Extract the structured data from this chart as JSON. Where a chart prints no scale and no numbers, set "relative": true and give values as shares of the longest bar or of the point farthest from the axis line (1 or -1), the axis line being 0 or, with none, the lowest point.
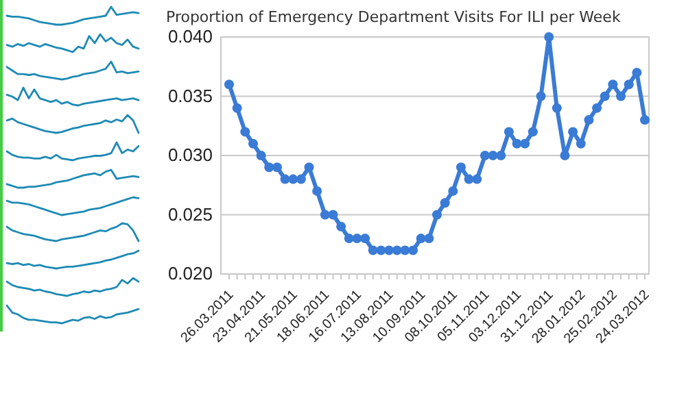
{
  "chart_data": [
    {
      "type": "line",
      "title": "Proportion of Emergency Department Visits For ILI per Week",
      "categories": [
        "26.03.2011",
        null,
        null,
        null,
        "23.04.2011",
        null,
        null,
        null,
        "21.05.2011",
        null,
        null,
        null,
        "18.06.2011",
        null,
        null,
        null,
        "16.07.2011",
        null,
        null,
        null,
        "13.08.2011",
        null,
        null,
        null,
        "10.09.2011",
        null,
        null,
        null,
        "08.10.2011",
        null,
        null,
        null,
        "05.11.2011",
        null,
        null,
        null,
        "03.12.2011",
        null,
        null,
        null,
        "31.12.2011",
        null,
        null,
        null,
        "28.01.2012",
        null,
        null,
        null,
        "25.02.2012",
        null,
        null,
        null,
        "24.03.2012"
      ],
      "series": [
        {
          "color": "#3a7bd5",
          "values": [
            0.036,
            0.034,
            0.032,
            0.031,
            0.03,
            0.029,
            0.029,
            0.028,
            0.028,
            0.028,
            0.029,
            0.027,
            0.025,
            0.025,
            0.024,
            0.023,
            0.023,
            0.023,
            0.022,
            0.022,
            0.022,
            0.022,
            0.022,
            0.022,
            0.023,
            0.023,
            0.025,
            0.026,
            0.027,
            0.029,
            0.028,
            0.028,
            0.03,
            0.03,
            0.03,
            0.032,
            0.031,
            0.031,
            0.032,
            0.035,
            0.04,
            0.034,
            0.03,
            0.032,
            0.031,
            0.033,
            0.034,
            0.035,
            0.036,
            0.035,
            0.036,
            0.037,
            0.033
          ]
        }
      ],
      "ylim": [
        0.02,
        0.04
      ],
      "yticks": [
        {
          "value": 0.02,
          "label": "0.020"
        },
        {
          "value": 0.025,
          "label": "0.025"
        },
        {
          "value": 0.03,
          "label": "0.030"
        },
        {
          "value": 0.035,
          "label": "0.035"
        },
        {
          "value": 0.04,
          "label": "0.040"
        }
      ],
      "grid": "y",
      "marker": "circle"
    },
    {
      "type": "line",
      "relative": true,
      "categories": [
        null,
        null,
        null,
        null,
        null,
        null,
        null,
        null,
        null,
        null,
        null,
        null,
        null,
        null,
        null,
        null,
        null,
        null,
        null,
        null,
        null,
        null,
        null,
        null,
        null
      ],
      "series": [
        {
          "color": "#1e8ab4",
          "values": [
            0.5,
            0.45,
            0.45,
            0.4,
            0.35,
            0.25,
            0.15,
            0.1,
            0.05,
            0,
            0,
            0.05,
            0.1,
            0.2,
            0.3,
            0.35,
            0.4,
            0.45,
            0.5,
            1,
            0.55,
            0.6,
            0.65,
            0.7,
            0.65
          ]
        }
      ]
    },
    {
      "type": "line",
      "relative": true,
      "categories": [
        null,
        null,
        null,
        null,
        null,
        null,
        null,
        null,
        null,
        null,
        null,
        null,
        null,
        null,
        null,
        null,
        null,
        null,
        null,
        null,
        null,
        null,
        null,
        null,
        null
      ],
      "series": [
        {
          "color": "#1e8ab4",
          "values": [
            0.4,
            0.3,
            0.45,
            0.35,
            0.5,
            0.4,
            0.3,
            0.45,
            0.35,
            0.25,
            0.2,
            0.1,
            0,
            0.3,
            0.2,
            0.9,
            0.5,
            1,
            0.6,
            0.8,
            0.5,
            0.4,
            0.7,
            0.3,
            0.2
          ]
        }
      ]
    },
    {
      "type": "line",
      "relative": true,
      "categories": [
        null,
        null,
        null,
        null,
        null,
        null,
        null,
        null,
        null,
        null,
        null,
        null,
        null,
        null,
        null,
        null,
        null,
        null,
        null,
        null,
        null,
        null,
        null,
        null,
        null
      ],
      "series": [
        {
          "color": "#1e8ab4",
          "values": [
            0.7,
            0.5,
            0.3,
            0.3,
            0.25,
            0.3,
            0.2,
            0.15,
            0.1,
            0.05,
            0,
            0.05,
            0.15,
            0.2,
            0.3,
            0.35,
            0.4,
            0.5,
            0.6,
            1,
            0.4,
            0.45,
            0.35,
            0.4,
            0.45
          ]
        }
      ]
    },
    {
      "type": "line",
      "relative": true,
      "categories": [
        null,
        null,
        null,
        null,
        null,
        null,
        null,
        null,
        null,
        null,
        null,
        null,
        null,
        null,
        null,
        null,
        null,
        null,
        null,
        null,
        null,
        null,
        null,
        null,
        null
      ],
      "series": [
        {
          "color": "#1e8ab4",
          "values": [
            0.6,
            0.5,
            0.3,
            1,
            0.4,
            0.9,
            0.4,
            0.3,
            0.2,
            0.3,
            0.1,
            0.2,
            0.05,
            0,
            0.1,
            0.15,
            0.2,
            0.25,
            0.3,
            0.35,
            0.4,
            0.3,
            0.35,
            0.4,
            0.3
          ]
        }
      ]
    },
    {
      "type": "line",
      "relative": true,
      "categories": [
        null,
        null,
        null,
        null,
        null,
        null,
        null,
        null,
        null,
        null,
        null,
        null,
        null,
        null,
        null,
        null,
        null,
        null,
        null,
        null,
        null,
        null,
        null,
        null,
        null
      ],
      "series": [
        {
          "color": "#1e8ab4",
          "values": [
            0.7,
            0.8,
            0.6,
            0.5,
            0.4,
            0.3,
            0.2,
            0.1,
            0.05,
            0,
            0.05,
            0.15,
            0.25,
            0.3,
            0.4,
            0.45,
            0.5,
            0.55,
            0.7,
            0.6,
            0.75,
            0.65,
            1,
            0.7,
            0
          ]
        }
      ]
    },
    {
      "type": "line",
      "relative": true,
      "categories": [
        null,
        null,
        null,
        null,
        null,
        null,
        null,
        null,
        null,
        null,
        null,
        null,
        null,
        null,
        null,
        null,
        null,
        null,
        null,
        null,
        null,
        null,
        null,
        null,
        null
      ],
      "series": [
        {
          "color": "#1e8ab4",
          "values": [
            0.5,
            0.3,
            0.2,
            0.15,
            0.15,
            0.1,
            0.1,
            0.2,
            0.1,
            0.3,
            0.1,
            0.05,
            0,
            0.1,
            0.15,
            0.2,
            0.25,
            0.25,
            0.3,
            0.4,
            1,
            0.4,
            0.6,
            0.5,
            0.8
          ]
        }
      ]
    },
    {
      "type": "line",
      "relative": true,
      "categories": [
        null,
        null,
        null,
        null,
        null,
        null,
        null,
        null,
        null,
        null,
        null,
        null,
        null,
        null,
        null,
        null,
        null,
        null,
        null,
        null,
        null,
        null,
        null,
        null,
        null
      ],
      "series": [
        {
          "color": "#1e8ab4",
          "values": [
            0.2,
            0.1,
            0,
            0,
            0.05,
            0.05,
            0.1,
            0.15,
            0.2,
            0.3,
            0.35,
            0.4,
            0.5,
            0.6,
            0.7,
            0.75,
            0.8,
            0.7,
            0.9,
            1,
            0.5,
            0.55,
            0.6,
            0.65,
            0.6
          ]
        }
      ]
    },
    {
      "type": "line",
      "relative": true,
      "categories": [
        null,
        null,
        null,
        null,
        null,
        null,
        null,
        null,
        null,
        null,
        null,
        null,
        null,
        null,
        null,
        null,
        null,
        null,
        null,
        null,
        null,
        null,
        null,
        null,
        null
      ],
      "series": [
        {
          "color": "#1e8ab4",
          "values": [
            0.8,
            0.7,
            0.7,
            0.65,
            0.6,
            0.5,
            0.4,
            0.3,
            0.2,
            0.1,
            0,
            0.05,
            0.1,
            0.15,
            0.2,
            0.3,
            0.35,
            0.4,
            0.5,
            0.6,
            0.7,
            0.8,
            0.9,
            1,
            0.95
          ]
        }
      ]
    },
    {
      "type": "line",
      "relative": true,
      "categories": [
        null,
        null,
        null,
        null,
        null,
        null,
        null,
        null,
        null,
        null,
        null,
        null,
        null,
        null,
        null,
        null,
        null,
        null,
        null,
        null,
        null,
        null,
        null,
        null,
        null
      ],
      "series": [
        {
          "color": "#1e8ab4",
          "values": [
            0.8,
            0.6,
            0.5,
            0.4,
            0.35,
            0.3,
            0.2,
            0.1,
            0.05,
            0,
            0.1,
            0.15,
            0.2,
            0.25,
            0.3,
            0.4,
            0.5,
            0.6,
            0.55,
            0.7,
            0.8,
            1,
            0.95,
            0.6,
            0
          ]
        }
      ]
    },
    {
      "type": "line",
      "relative": true,
      "categories": [
        null,
        null,
        null,
        null,
        null,
        null,
        null,
        null,
        null,
        null,
        null,
        null,
        null,
        null,
        null,
        null,
        null,
        null,
        null,
        null,
        null,
        null,
        null,
        null,
        null
      ],
      "series": [
        {
          "color": "#1e8ab4",
          "values": [
            0.3,
            0.25,
            0.3,
            0.2,
            0.25,
            0.15,
            0.2,
            0.1,
            0.05,
            0,
            0.05,
            0.1,
            0.1,
            0.15,
            0.2,
            0.25,
            0.3,
            0.35,
            0.45,
            0.5,
            0.6,
            0.7,
            0.8,
            0.85,
            1
          ]
        }
      ]
    },
    {
      "type": "line",
      "relative": true,
      "categories": [
        null,
        null,
        null,
        null,
        null,
        null,
        null,
        null,
        null,
        null,
        null,
        null,
        null,
        null,
        null,
        null,
        null,
        null,
        null,
        null,
        null,
        null,
        null,
        null,
        null
      ],
      "series": [
        {
          "color": "#1e8ab4",
          "values": [
            0.8,
            0.6,
            0.5,
            0.45,
            0.4,
            0.3,
            0.35,
            0.25,
            0.2,
            0.1,
            0.05,
            0,
            0.1,
            0.15,
            0.25,
            0.2,
            0.3,
            0.25,
            0.35,
            0.4,
            0.5,
            0.9,
            0.7,
            1,
            0.8
          ]
        }
      ]
    },
    {
      "type": "line",
      "relative": true,
      "categories": [
        null,
        null,
        null,
        null,
        null,
        null,
        null,
        null,
        null,
        null,
        null,
        null,
        null,
        null,
        null,
        null,
        null,
        null,
        null,
        null,
        null,
        null,
        null,
        null,
        null
      ],
      "series": [
        {
          "color": "#1e8ab4",
          "values": [
            1,
            0.6,
            0.5,
            0.3,
            0.2,
            0.2,
            0.15,
            0.1,
            0.05,
            0.05,
            0,
            0.1,
            0.2,
            0.15,
            0.3,
            0.35,
            0.25,
            0.4,
            0.3,
            0.35,
            0.5,
            0.55,
            0.6,
            0.7,
            0.8
          ]
        }
      ]
    }
  ]
}
